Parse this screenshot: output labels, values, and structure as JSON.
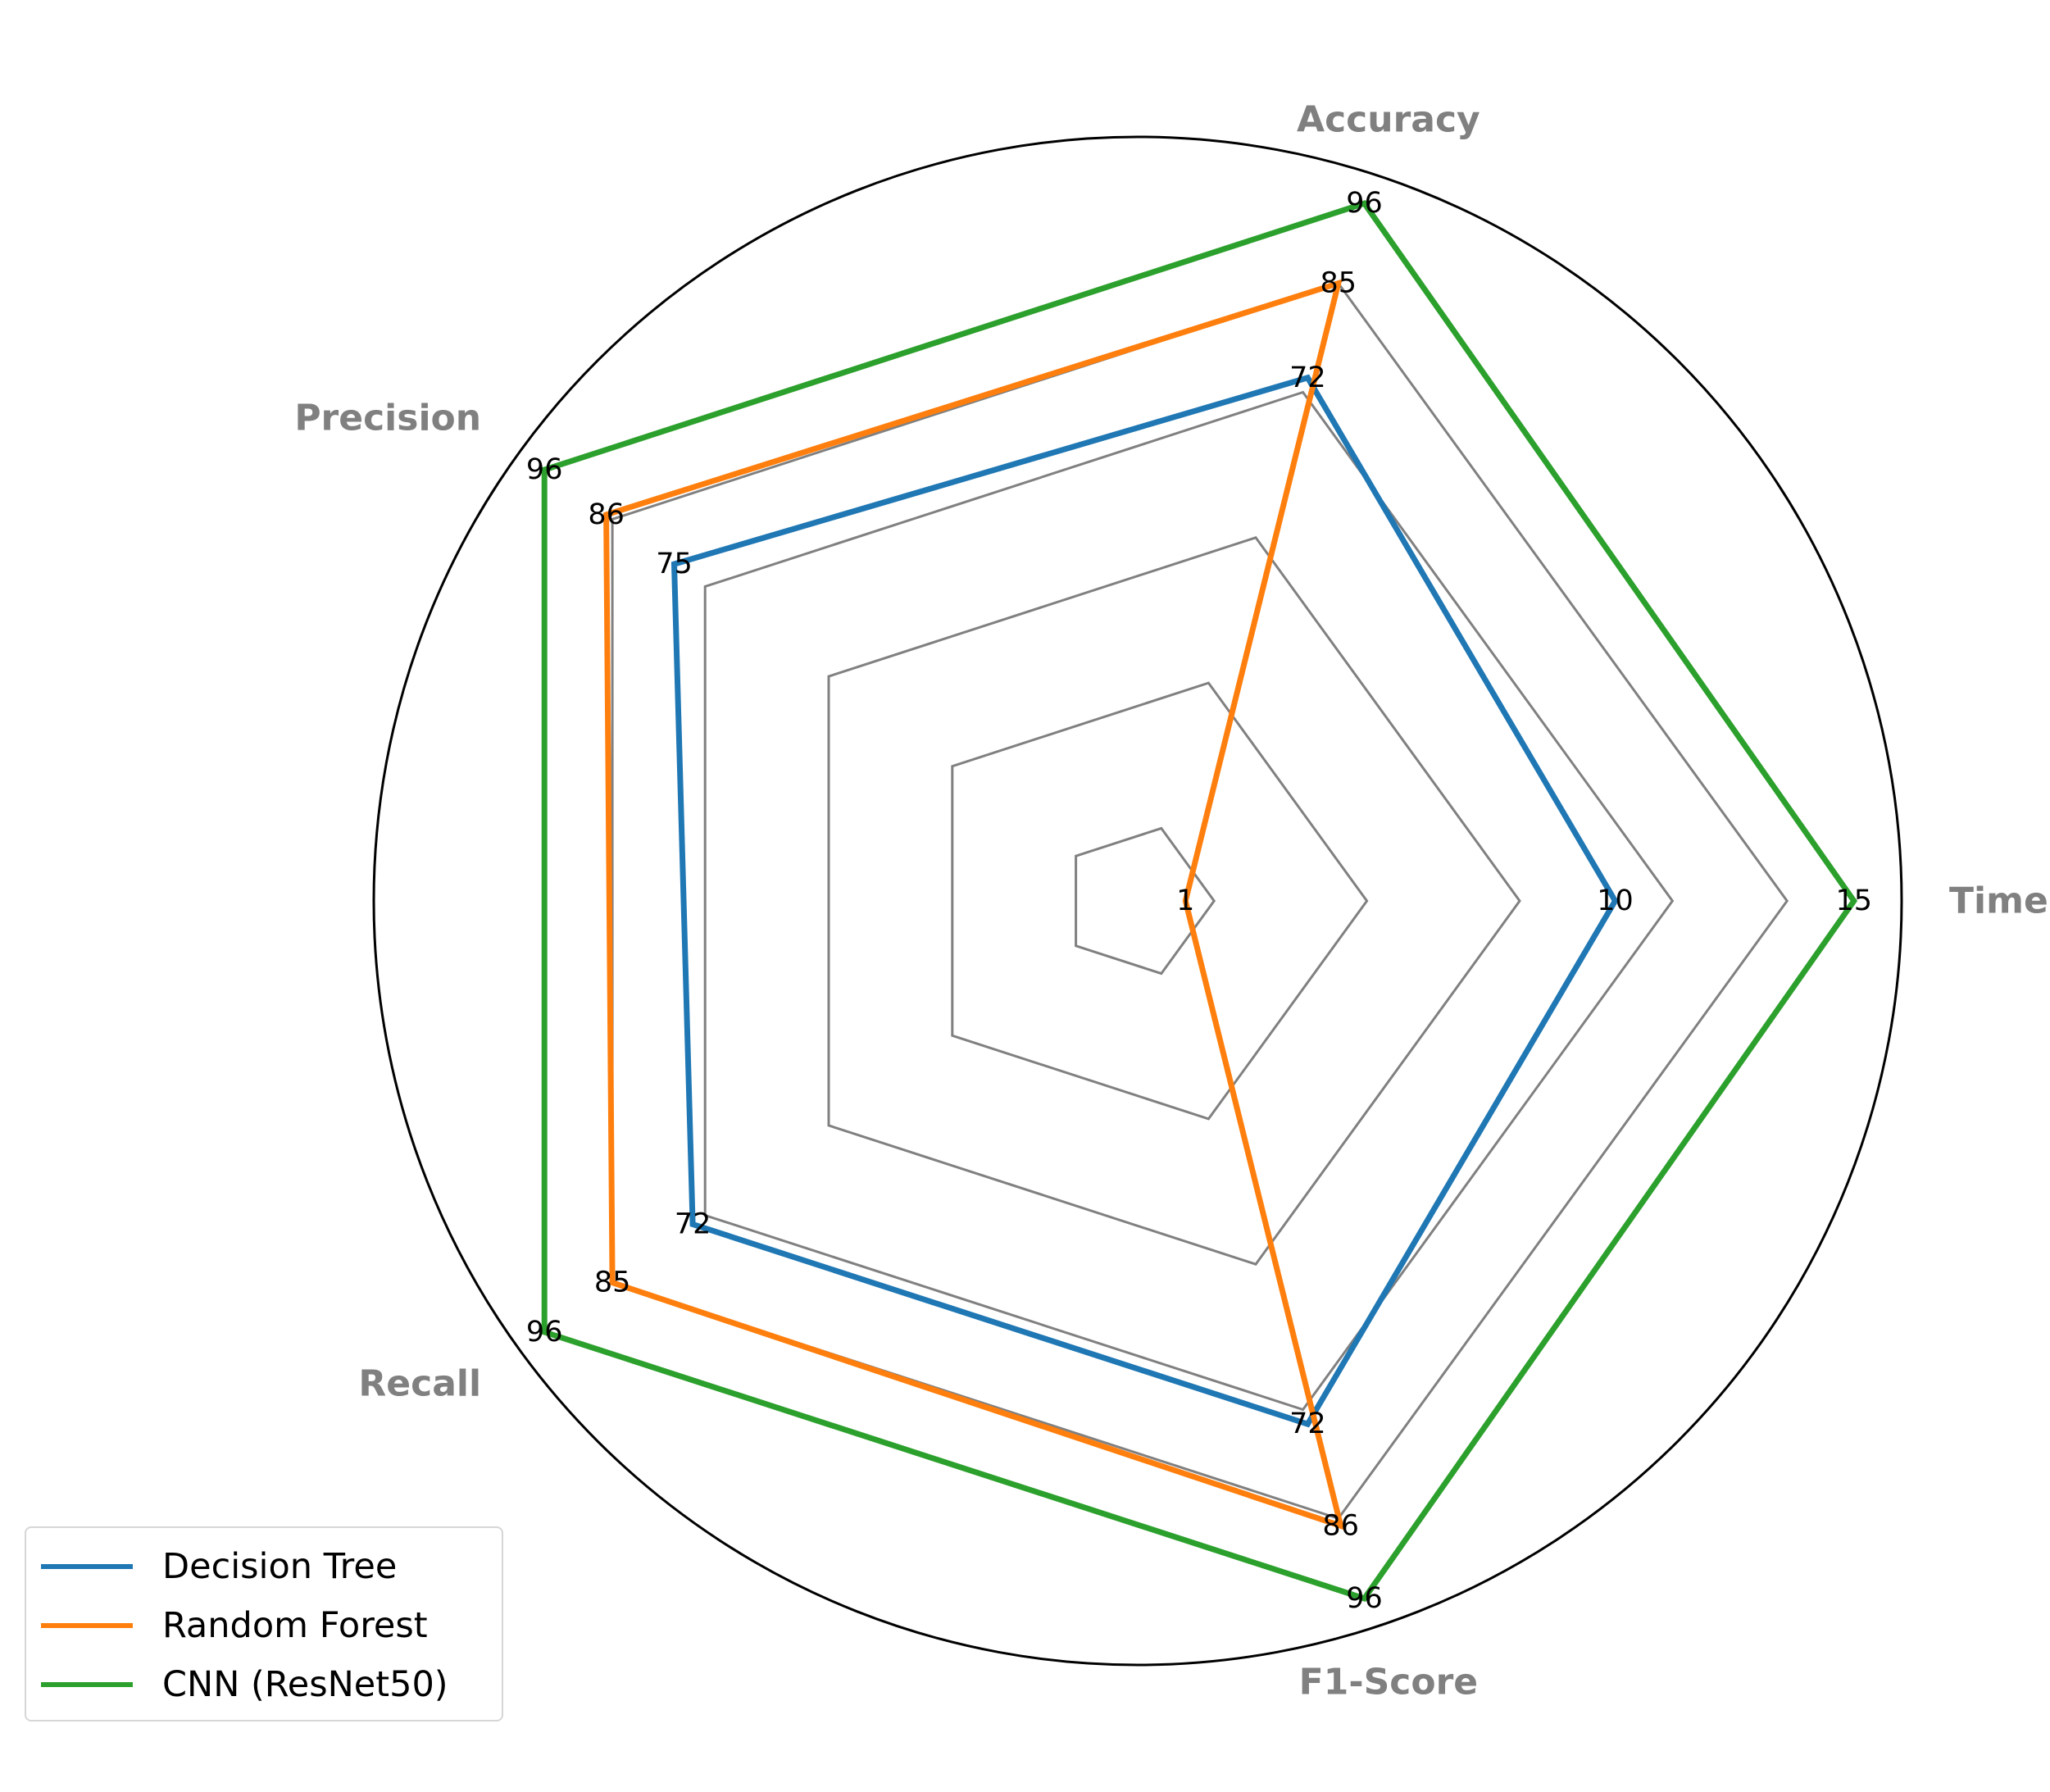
{
  "chart_data": {
    "type": "radar",
    "axes": [
      "Time",
      "Accuracy",
      "Precision",
      "Recall",
      "F1-Score"
    ],
    "series": [
      {
        "name": "Decision Tree",
        "color": "#1f77b4",
        "values": [
          10,
          72,
          75,
          72,
          72
        ],
        "labels": [
          "10",
          "72",
          "75",
          "72",
          "72"
        ]
      },
      {
        "name": "Random Forest",
        "color": "#ff7f0e",
        "values": [
          1,
          85,
          86,
          85,
          86
        ],
        "labels": [
          "1",
          "85",
          "86",
          "85",
          "86"
        ]
      },
      {
        "name": "CNN (ResNet50)",
        "color": "#2ca02c",
        "values": [
          15,
          96,
          96,
          96,
          96
        ],
        "labels": [
          "15",
          "96",
          "96",
          "96",
          "96"
        ]
      }
    ],
    "axis_max": [
      16,
      100,
      100,
      100,
      100
    ],
    "grid_levels": [
      0.1,
      0.3,
      0.5,
      0.7,
      0.85
    ],
    "grid_color": "#808080",
    "legend": "lower-left",
    "title": "",
    "xlabel": "",
    "ylabel": ""
  }
}
